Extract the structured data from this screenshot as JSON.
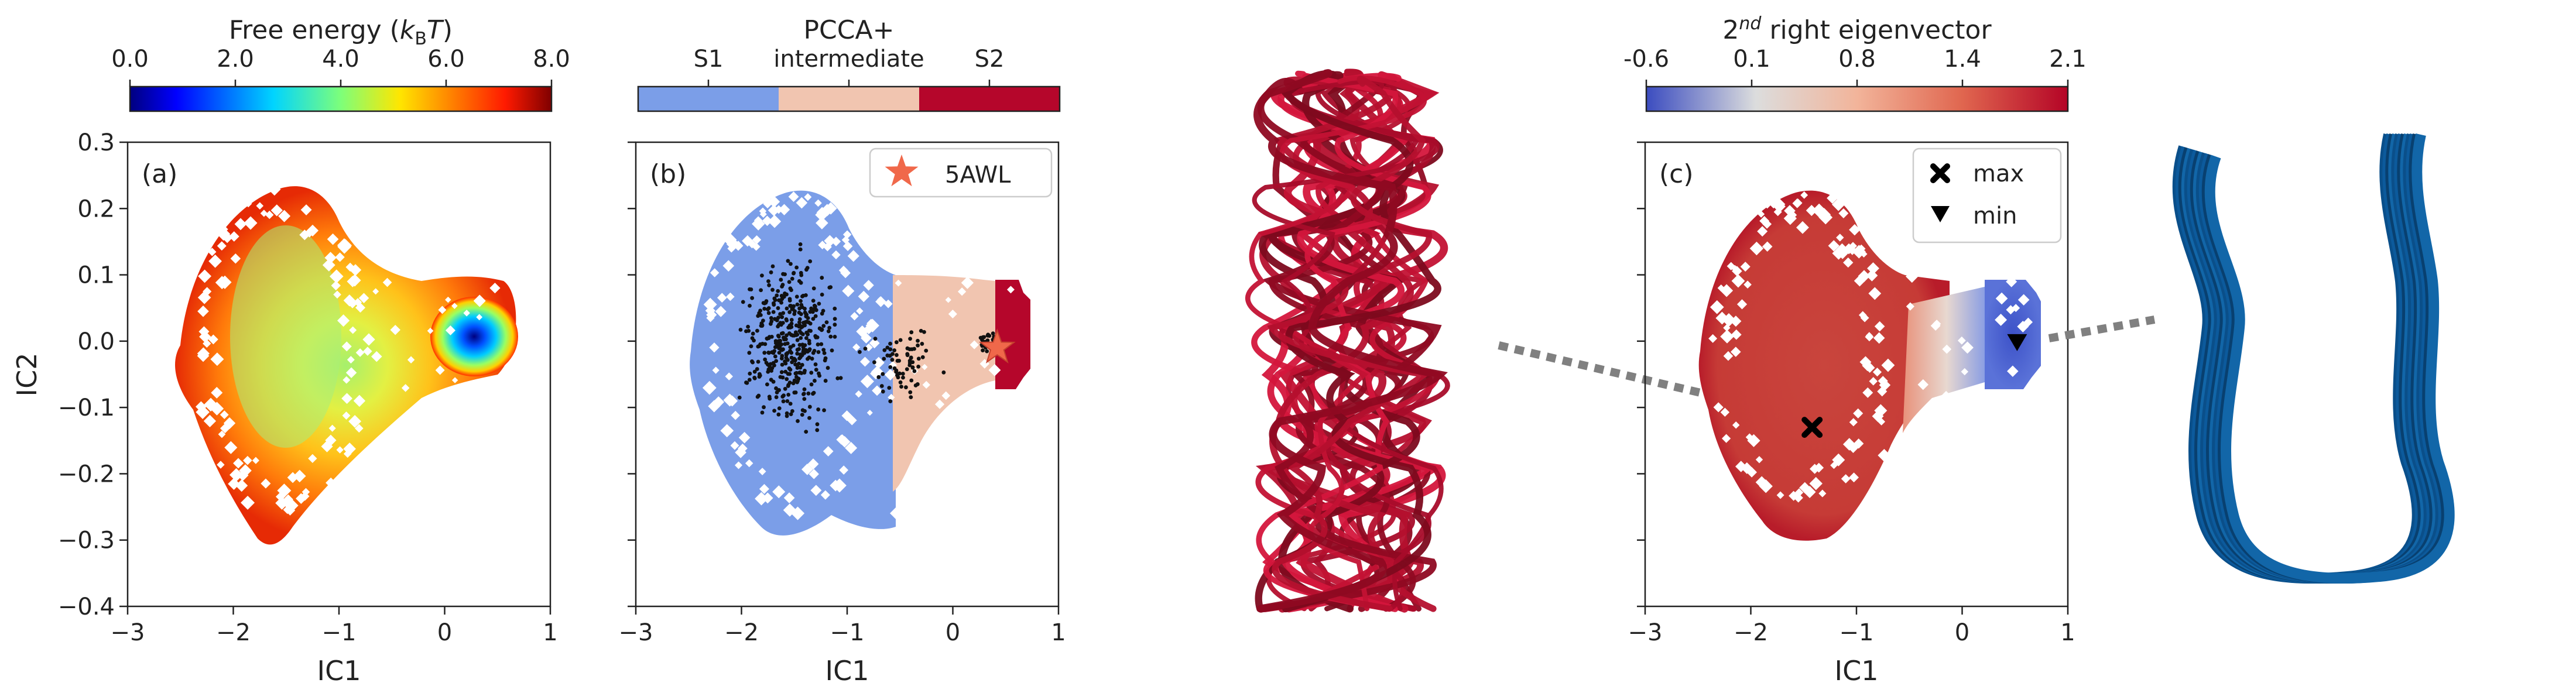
{
  "chart_data": [
    {
      "type": "heatmap",
      "panel_label": "(a)",
      "xlabel": "IC1",
      "ylabel": "IC2",
      "xlim": [
        -3,
        1
      ],
      "ylim": [
        -0.4,
        0.3
      ],
      "xticks": [
        "−3",
        "−2",
        "−1",
        "0",
        "1"
      ],
      "yticks": [
        "−0.4",
        "−0.3",
        "−0.2",
        "−0.1",
        "0.0",
        "0.1",
        "0.2",
        "0.3"
      ],
      "colorbar": {
        "title": "Free energy (kBT)",
        "title_parts": [
          "Free energy (",
          "k",
          "B",
          "T",
          ")"
        ],
        "ticks": [
          "0.0",
          "2.0",
          "4.0",
          "6.0",
          "8.0"
        ],
        "range": [
          0,
          8
        ],
        "colormap": "jet"
      },
      "regions": [
        {
          "name": "S1 basin",
          "center": [
            -1.55,
            0.0
          ],
          "min_free_energy": 3.5
        },
        {
          "name": "S2 basin",
          "center": [
            0.42,
            0.0
          ],
          "min_free_energy": 0.0
        }
      ]
    },
    {
      "type": "scatter",
      "panel_label": "(b)",
      "xlabel": "IC1",
      "xlim": [
        -3,
        1
      ],
      "ylim": [
        -0.4,
        0.3
      ],
      "xticks": [
        "−3",
        "−2",
        "−1",
        "0",
        "1"
      ],
      "colorbar": {
        "title": "PCCA+",
        "categories": [
          "S1",
          "intermediate",
          "S2"
        ],
        "colors": [
          "#7b9ee8",
          "#f1c5b0",
          "#b5062b"
        ]
      },
      "state_boundaries_ic1": [
        -0.9,
        0.0
      ],
      "legend": [
        {
          "marker": "star",
          "label": "5AWL",
          "color": "#f0684a"
        }
      ],
      "star_point": [
        0.42,
        -0.01
      ],
      "legend_position": "top-right"
    },
    {
      "type": "heatmap",
      "panel_label": "(c)",
      "xlabel": "IC1",
      "xlim": [
        -3,
        1
      ],
      "ylim": [
        -0.4,
        0.3
      ],
      "xticks": [
        "−3",
        "−2",
        "−1",
        "0",
        "1"
      ],
      "colorbar": {
        "title": "2nd right eigenvector",
        "title_parts": [
          "2",
          "nd",
          " right eigenvector"
        ],
        "ticks": [
          "-0.6",
          "0.1",
          "0.8",
          "1.4",
          "2.1"
        ],
        "range": [
          -0.6,
          2.1
        ],
        "colormap": "coolwarm"
      },
      "markers": [
        {
          "label": "max",
          "symbol": "x",
          "x": -1.42,
          "y": -0.13
        },
        {
          "label": "min",
          "symbol": "triangle",
          "x": 0.52,
          "y": 0.0
        }
      ],
      "legend_position": "top-right"
    }
  ],
  "images": [
    {
      "name": "S1-structure-ensemble",
      "color": "#b5102e"
    },
    {
      "name": "S2-structure-ensemble",
      "color": "#0a4f8a"
    }
  ]
}
